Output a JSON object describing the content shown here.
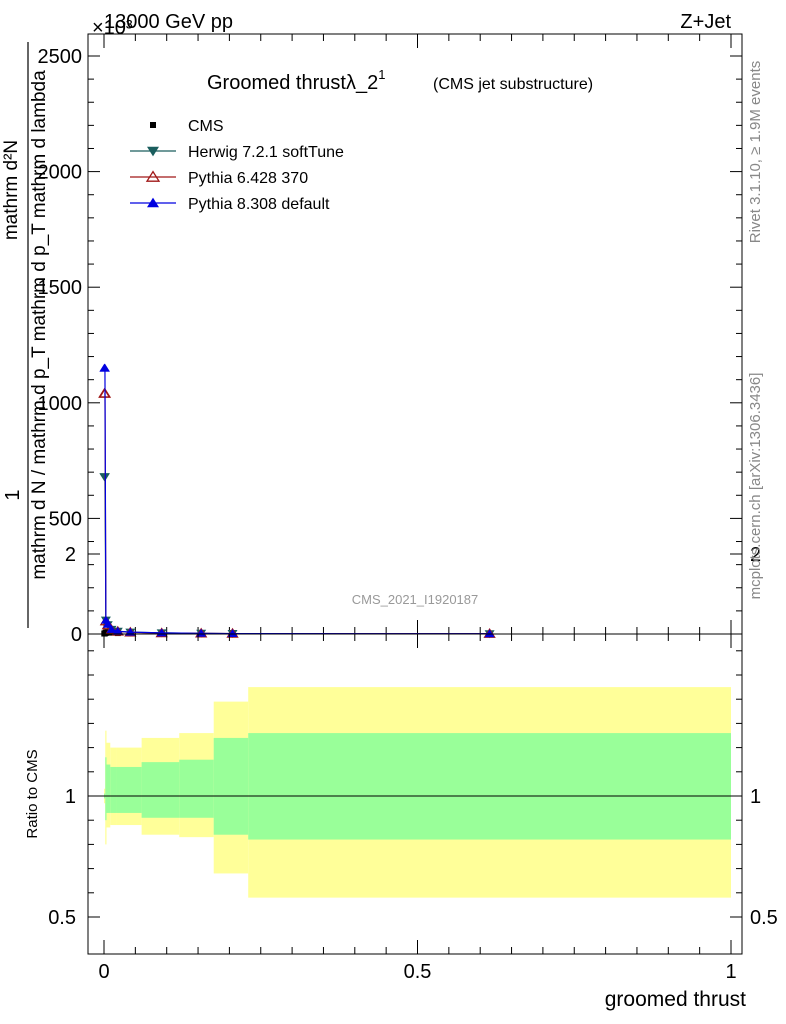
{
  "header": {
    "energy_label": "13000 GeV pp",
    "process_label": "Z+Jet",
    "exponent_label": "×10³"
  },
  "side_text": {
    "rivet_version": "Rivet 3.1.10, ≥ 1.9M events",
    "mcplots_label": "mcplots.cern.ch [arXiv:1306.3436]"
  },
  "chart_data": [
    {
      "type": "line",
      "title_main": "Groomed thrustλ_2",
      "title_superscript": "1",
      "subtitle": "(CMS jet substructure)",
      "analysis_id": "CMS_2021_I1920187",
      "xlabel": "groomed thrust",
      "ylabel_numerator": "1",
      "ylabel_denominator": "mathrm d N / mathrm d p_T mathrm d p_T mathrm d lambda",
      "ylabel_second": "mathrm d²N",
      "xlim": [
        0,
        1
      ],
      "ylim": [
        0,
        2600
      ],
      "y_scale_note": "×10³",
      "y_ticks": [
        0,
        500,
        1000,
        1500,
        2000,
        2500
      ],
      "y_tick_labels": [
        "0",
        "500",
        "1000",
        "1500",
        "2000",
        "2500"
      ],
      "legend_position": "top-left",
      "series": [
        {
          "name": "CMS",
          "color": "#000000",
          "marker": "square",
          "x": [
            0.0005,
            0.0015,
            0.003,
            0.006,
            0.012,
            0.022,
            0.042,
            0.092,
            0.155,
            0.205,
            0.615
          ],
          "values": [
            2,
            3,
            5,
            8,
            6,
            4,
            2,
            1,
            0.6,
            0.4,
            0.1
          ]
        },
        {
          "name": "Herwig 7.2.1 softTune",
          "color": "#1a5e5e",
          "marker": "triangle-down",
          "x": [
            0.0005,
            0.0015,
            0.003,
            0.006,
            0.012,
            0.022,
            0.042,
            0.092,
            0.155,
            0.205,
            0.615
          ],
          "values": [
            680,
            680,
            60,
            40,
            20,
            12,
            8,
            5,
            3,
            2,
            1
          ]
        },
        {
          "name": "Pythia 6.428 370",
          "color": "#a01818",
          "marker": "triangle-up-open",
          "x": [
            0.0005,
            0.0015,
            0.003,
            0.006,
            0.012,
            0.022,
            0.042,
            0.092,
            0.155,
            0.205,
            0.615
          ],
          "values": [
            1040,
            1040,
            55,
            38,
            18,
            11,
            7,
            4,
            3,
            2,
            1
          ]
        },
        {
          "name": "Pythia 8.308 default",
          "color": "#0000e0",
          "marker": "triangle-up",
          "x": [
            0.0005,
            0.0015,
            0.003,
            0.006,
            0.012,
            0.022,
            0.042,
            0.092,
            0.155,
            0.205,
            0.615
          ],
          "values": [
            1150,
            1150,
            60,
            42,
            20,
            12,
            8,
            5,
            3,
            2,
            1
          ]
        }
      ]
    },
    {
      "type": "area",
      "ylabel": "Ratio to CMS",
      "xlabel": "groomed thrust",
      "xlim": [
        0,
        1
      ],
      "ylim": [
        0.4,
        2.3
      ],
      "y_ticks": [
        0.5,
        1,
        2
      ],
      "y_tick_labels": [
        "0.5",
        "1",
        "2"
      ],
      "x_ticks": [
        0,
        0.5,
        1
      ],
      "x_tick_labels": [
        "0",
        "0.5",
        "1"
      ],
      "reference_line": 1,
      "bins": [
        0,
        0.002,
        0.004,
        0.01,
        0.02,
        0.06,
        0.12,
        0.175,
        0.23,
        1.0
      ],
      "band_outer": {
        "color": "#ffff99",
        "lower": [
          0.97,
          0.8,
          0.87,
          0.88,
          0.88,
          0.84,
          0.83,
          0.68,
          0.58
        ],
        "upper": [
          1.03,
          1.27,
          1.22,
          1.2,
          1.2,
          1.24,
          1.26,
          1.39,
          1.45
        ]
      },
      "band_inner": {
        "color": "#99ff99",
        "lower": [
          0.99,
          0.9,
          0.93,
          0.93,
          0.93,
          0.91,
          0.91,
          0.84,
          0.82
        ],
        "upper": [
          1.01,
          1.16,
          1.13,
          1.12,
          1.12,
          1.14,
          1.15,
          1.24,
          1.26
        ]
      }
    }
  ]
}
